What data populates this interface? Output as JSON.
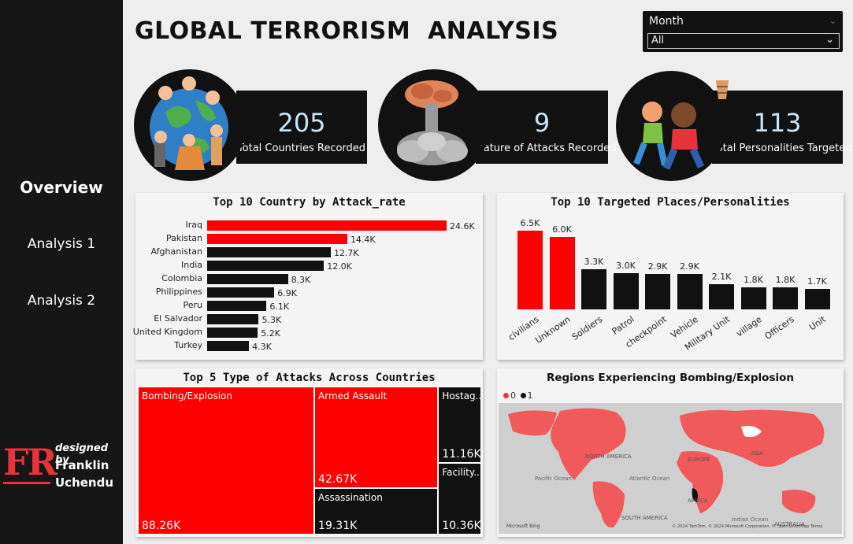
{
  "sidebar": {
    "items": [
      {
        "label": "Overview",
        "active": true
      },
      {
        "label": "Analysis 1",
        "active": false
      },
      {
        "label": "Analysis 2",
        "active": false
      }
    ],
    "brand": {
      "logo": "FR",
      "designed_by": "designed by",
      "name1": "Franklin",
      "name2": "Uchendu"
    }
  },
  "header": {
    "title": "GLOBAL TERRORISM  ANALYSIS"
  },
  "slicer": {
    "label": "Month",
    "selected": "All"
  },
  "kpis": [
    {
      "value": "205",
      "label": "Total Countries Recorded"
    },
    {
      "value": "9",
      "label": "Nature of Attacks Recorded"
    },
    {
      "value": "113",
      "label": "Total Personalities Targeted"
    }
  ],
  "colors": {
    "accent": "#ff0000",
    "dark": "#111111",
    "kpi_value": "#c8e4f8"
  },
  "chart_data": [
    {
      "type": "bar",
      "orientation": "horizontal",
      "title": "Top 10 Country by Attack_rate",
      "categories": [
        "Iraq",
        "Pakistan",
        "Afghanistan",
        "India",
        "Colombia",
        "Philippines",
        "Peru",
        "El Salvador",
        "United Kingdom",
        "Turkey"
      ],
      "values": [
        24.6,
        14.4,
        12.7,
        12.0,
        8.3,
        6.9,
        6.1,
        5.3,
        5.2,
        4.3
      ],
      "labels": [
        "24.6K",
        "14.4K",
        "12.7K",
        "12.0K",
        "8.3K",
        "6.9K",
        "6.1K",
        "5.3K",
        "5.2K",
        "4.3K"
      ],
      "highlight_count": 2
    },
    {
      "type": "bar",
      "orientation": "vertical",
      "title": "Top 10 Targeted Places/Personalities",
      "categories": [
        "civilians",
        "Unknown",
        "Soldiers",
        "Patrol",
        "checkpoint",
        "Vehicle",
        "Military Unit",
        "village",
        "Officers",
        "Unit"
      ],
      "values": [
        6.5,
        6.0,
        3.3,
        3.0,
        2.9,
        2.9,
        2.1,
        1.8,
        1.8,
        1.7
      ],
      "labels": [
        "6.5K",
        "6.0K",
        "3.3K",
        "3.0K",
        "2.9K",
        "2.9K",
        "2.1K",
        "1.8K",
        "1.8K",
        "1.7K"
      ],
      "highlight_count": 2
    },
    {
      "type": "treemap",
      "title": "Top 5 Type of Attacks Across Countries",
      "categories": [
        "Bombing/Explosion",
        "Armed Assault",
        "Assassination",
        "Hostag...",
        "Facility..."
      ],
      "values": [
        88.26,
        42.67,
        19.31,
        11.16,
        10.36
      ],
      "labels": [
        "88.26K",
        "42.67K",
        "19.31K",
        "11.16K",
        "10.36K"
      ]
    },
    {
      "type": "map",
      "title": "Regions Experiencing Bombing/Explosion",
      "legend": [
        "0",
        "1"
      ],
      "map_labels": [
        "NORTH AMERICA",
        "EUROPE",
        "ASIA",
        "AFRICA",
        "SOUTH AMERICA",
        "AUSTRALIA",
        "Pacific Ocean",
        "Atlantic Ocean",
        "Indian Ocean"
      ],
      "attribution": "© 2024 TomTom, © 2024 Microsoft Corporation, © OpenStreetMap  Terms",
      "bing": "Microsoft Bing"
    }
  ]
}
